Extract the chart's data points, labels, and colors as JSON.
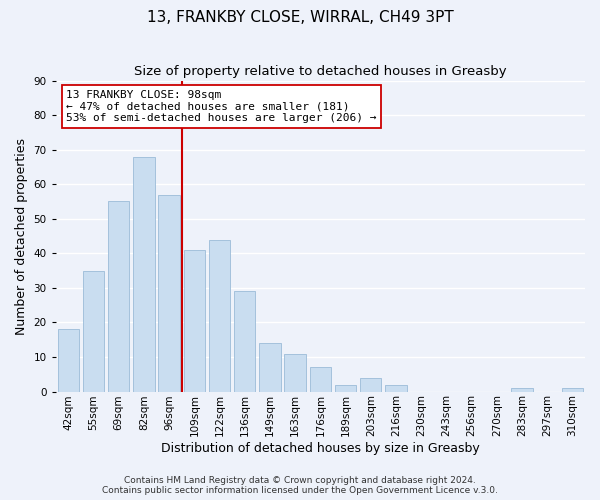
{
  "title_line1": "13, FRANKBY CLOSE, WIRRAL, CH49 3PT",
  "title_line2": "Size of property relative to detached houses in Greasby",
  "xlabel": "Distribution of detached houses by size in Greasby",
  "ylabel": "Number of detached properties",
  "bar_labels": [
    "42sqm",
    "55sqm",
    "69sqm",
    "82sqm",
    "96sqm",
    "109sqm",
    "122sqm",
    "136sqm",
    "149sqm",
    "163sqm",
    "176sqm",
    "189sqm",
    "203sqm",
    "216sqm",
    "230sqm",
    "243sqm",
    "256sqm",
    "270sqm",
    "283sqm",
    "297sqm",
    "310sqm"
  ],
  "bar_values": [
    18,
    35,
    55,
    68,
    57,
    41,
    44,
    29,
    14,
    11,
    7,
    2,
    4,
    2,
    0,
    0,
    0,
    0,
    1,
    0,
    1
  ],
  "bar_color": "#c9ddf0",
  "bar_edge_color": "#9bbbd8",
  "vline_color": "#cc0000",
  "annotation_text": "13 FRANKBY CLOSE: 98sqm\n← 47% of detached houses are smaller (181)\n53% of semi-detached houses are larger (206) →",
  "annotation_box_color": "#ffffff",
  "annotation_box_edge": "#cc0000",
  "ylim": [
    0,
    90
  ],
  "yticks": [
    0,
    10,
    20,
    30,
    40,
    50,
    60,
    70,
    80,
    90
  ],
  "footnote": "Contains HM Land Registry data © Crown copyright and database right 2024.\nContains public sector information licensed under the Open Government Licence v.3.0.",
  "background_color": "#eef2fa",
  "plot_background": "#eef2fa",
  "grid_color": "#ffffff",
  "title_fontsize": 11,
  "subtitle_fontsize": 9.5,
  "axis_label_fontsize": 9,
  "tick_fontsize": 7.5,
  "footnote_fontsize": 6.5,
  "annotation_fontsize": 8
}
